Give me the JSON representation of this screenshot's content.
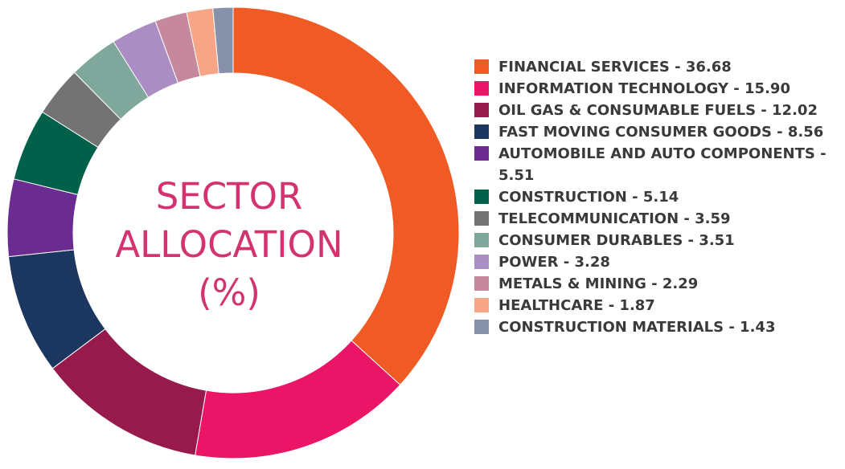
{
  "chart_data": {
    "type": "pie",
    "title": "SECTOR ALLOCATION (%)",
    "title_lines": [
      "SECTOR",
      "ALLOCATION",
      "(%)"
    ],
    "slices": [
      {
        "label": "FINANCIAL SERVICES",
        "value": 36.68,
        "value_text": "36.68",
        "color": "#f05a24"
      },
      {
        "label": "INFORMATION TECHNOLOGY",
        "value": 15.9,
        "value_text": "15.90",
        "color": "#ea1566"
      },
      {
        "label": "OIL GAS & CONSUMABLE FUELS",
        "value": 12.02,
        "value_text": "12.02",
        "color": "#961b4c"
      },
      {
        "label": "FAST MOVING CONSUMER GOODS",
        "value": 8.56,
        "value_text": "8.56",
        "color": "#1b365f"
      },
      {
        "label": "AUTOMOBILE AND AUTO COMPONENTS",
        "value": 5.51,
        "value_text": "5.51",
        "color": "#6a2c91"
      },
      {
        "label": "CONSTRUCTION",
        "value": 5.14,
        "value_text": "5.14",
        "color": "#00604a"
      },
      {
        "label": "TELECOMMUNICATION",
        "value": 3.59,
        "value_text": "3.59",
        "color": "#737373"
      },
      {
        "label": "CONSUMER DURABLES",
        "value": 3.51,
        "value_text": "3.51",
        "color": "#7fa79b"
      },
      {
        "label": "POWER",
        "value": 3.28,
        "value_text": "3.28",
        "color": "#a98dc3"
      },
      {
        "label": "METALS & MINING",
        "value": 2.29,
        "value_text": "2.29",
        "color": "#c6889d"
      },
      {
        "label": "HEALTHCARE",
        "value": 1.87,
        "value_text": "1.87",
        "color": "#f7a586"
      },
      {
        "label": "CONSTRUCTION MATERIALS",
        "value": 1.43,
        "value_text": "1.43",
        "color": "#8791aa"
      }
    ],
    "donut": true,
    "legend_position": "right"
  }
}
